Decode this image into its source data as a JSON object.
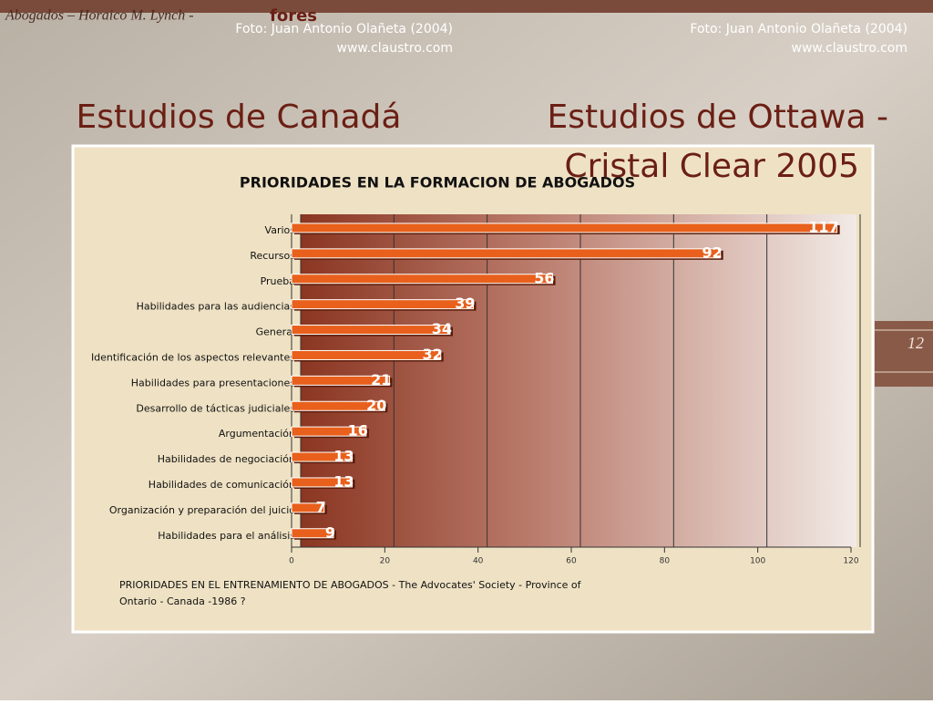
{
  "header": {
    "author": "Abogados – Horaico M. Lynch -",
    "brand": "fores"
  },
  "photo_credits": [
    {
      "author": "Foto: Juan Antonio Olañeta (2004)",
      "site": "www.claustro.com"
    },
    {
      "author": "Foto: Juan Antonio Olañeta (2004)",
      "site": "www.claustro.com"
    }
  ],
  "titles": [
    "Estudios de Canadá",
    "Estudios de Ottawa -",
    "Cristal Clear 2005"
  ],
  "page_number": "12",
  "chart_data": {
    "type": "bar",
    "orientation": "horizontal",
    "title": "PRIORIDADES EN LA FORMACION DE ABOGADOS",
    "categories": [
      "Varios",
      "Recursos",
      "Prueba",
      "Habilidades para las audiencias",
      "General",
      "Identificación de los aspectos relevantes",
      "Habilidades para presentaciones",
      "Desarrollo de tácticas judiciales",
      "Argumentación",
      "Habilidades de negociación",
      "Habilidades de comunicación",
      "Organización y preparación del juicio",
      "Habilidades para el análisis"
    ],
    "values": [
      117,
      92,
      56,
      39,
      34,
      32,
      21,
      20,
      16,
      13,
      13,
      7,
      9
    ],
    "color": "#e8601c",
    "xlim": [
      0,
      120
    ],
    "xticks": [
      0,
      20,
      40,
      60,
      80,
      100,
      120
    ],
    "grid": true,
    "caption": [
      "PRIORIDADES EN EL ENTRENAMIENTO DE ABOGADOS - The Advocates' Society - Province of",
      "Ontario -  Canada -1986 ?"
    ]
  }
}
